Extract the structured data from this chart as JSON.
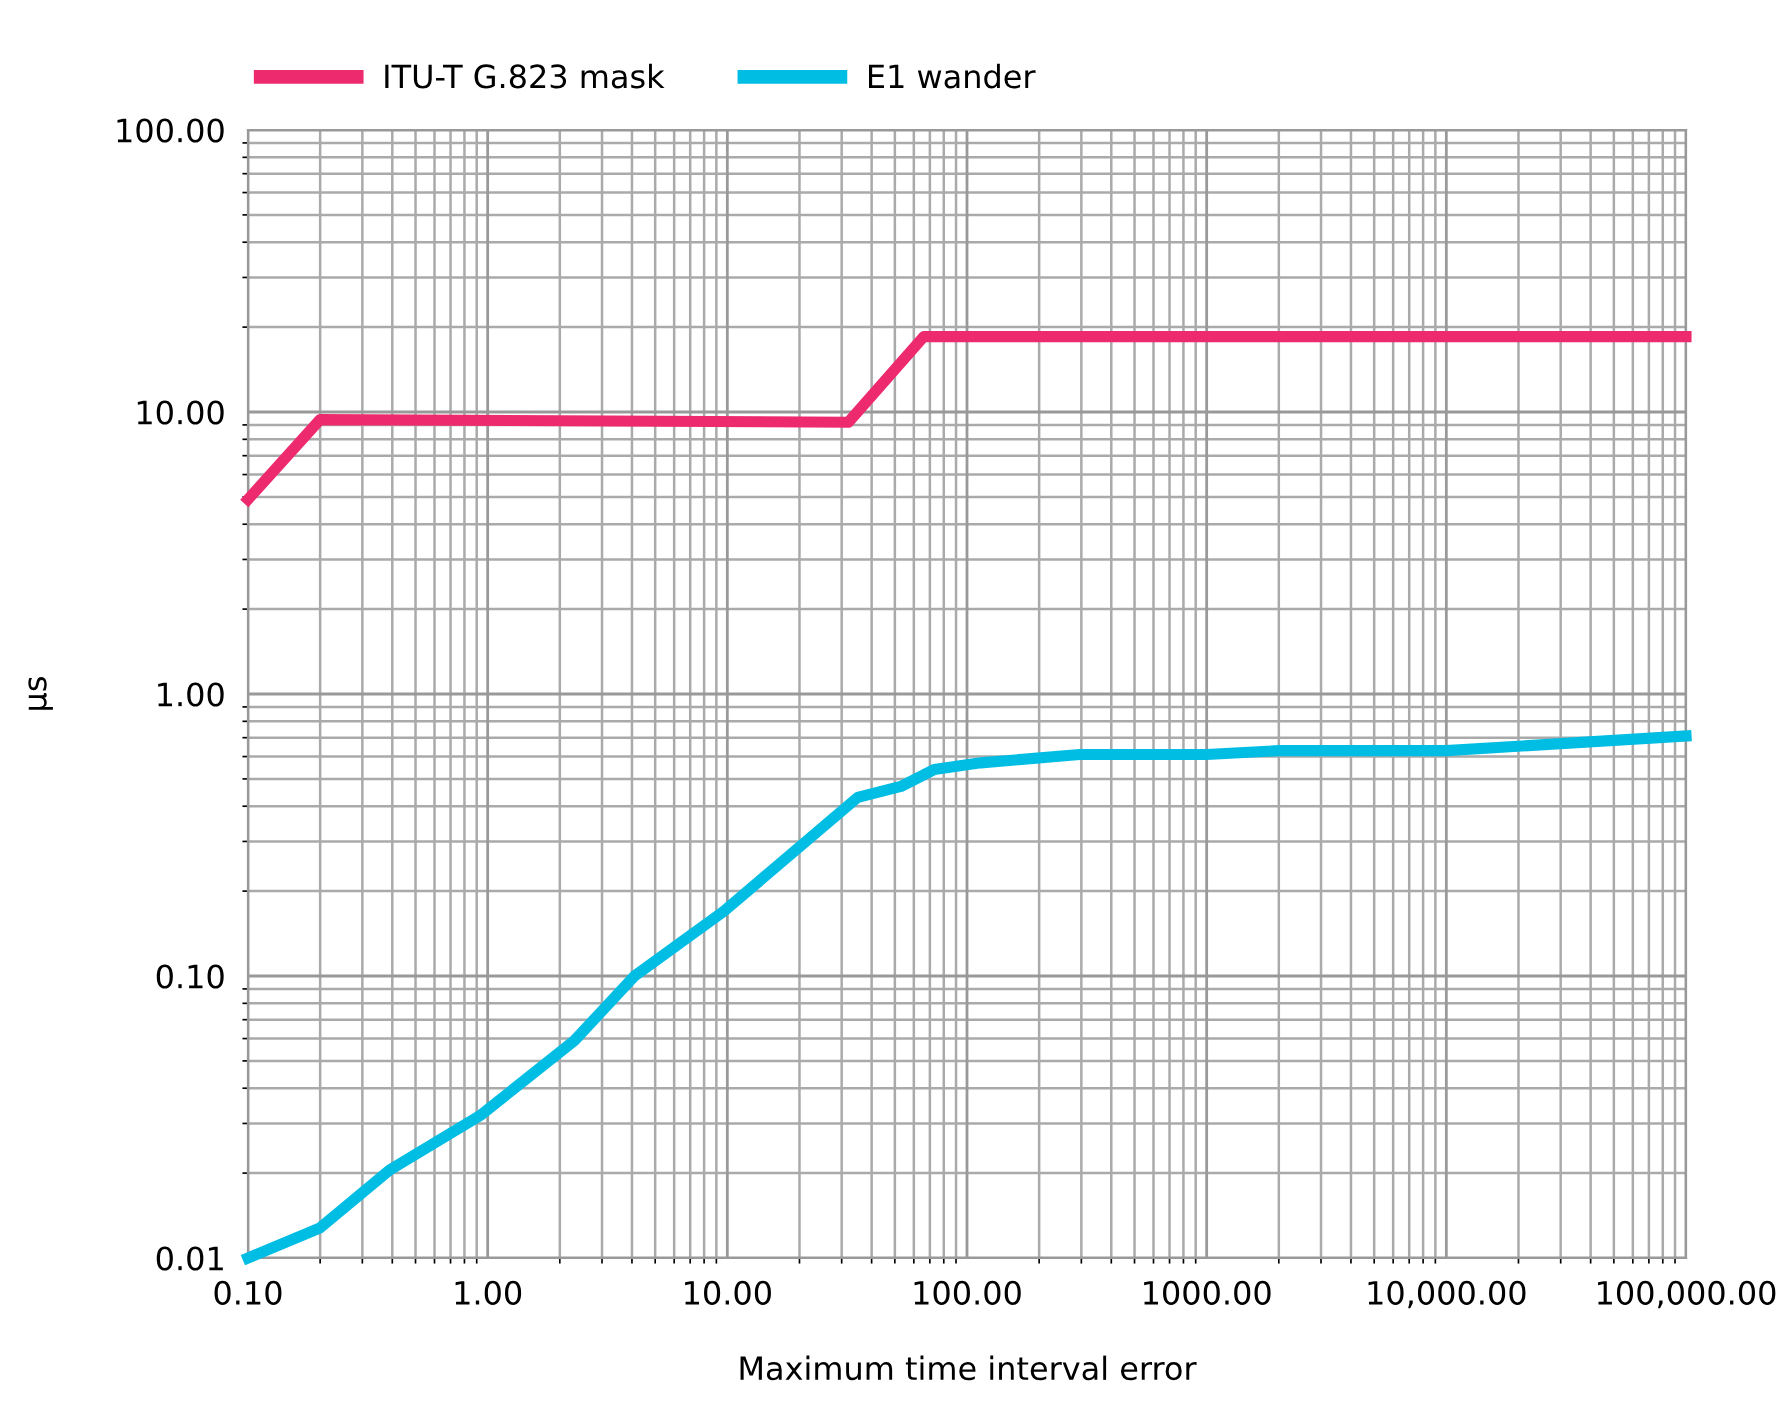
{
  "chart_data": {
    "type": "line",
    "xlabel": "Maximum time interval error",
    "ylabel": "µs",
    "log": "xy",
    "grid": true,
    "legend": "top left",
    "line_style": "solid",
    "marker": "none",
    "xlim": [
      0.1,
      100000
    ],
    "ylim": [
      0.01,
      100
    ],
    "xticks": [
      {
        "value": 0.1,
        "label": "0.10"
      },
      {
        "value": 1,
        "label": "1.00"
      },
      {
        "value": 10,
        "label": "10.00"
      },
      {
        "value": 100,
        "label": "100.00"
      },
      {
        "value": 1000,
        "label": "1000.00"
      },
      {
        "value": 10000,
        "label": "10,000.00"
      },
      {
        "value": 100000,
        "label": "100,000.00"
      }
    ],
    "yticks": [
      {
        "value": 0.01,
        "label": "0.01"
      },
      {
        "value": 0.1,
        "label": "0.10"
      },
      {
        "value": 1,
        "label": "1.00"
      },
      {
        "value": 10,
        "label": "10.00"
      },
      {
        "value": 100,
        "label": "100.00"
      }
    ],
    "series": [
      {
        "name": "ITU-T G.823 mask",
        "color": "#ee2a6f",
        "x": [
          0.1,
          0.2,
          32,
          66,
          100000
        ],
        "values": [
          4.9,
          9.4,
          9.2,
          18.5,
          18.5
        ]
      },
      {
        "name": "E1 wander",
        "color": "#00bde3",
        "x": [
          0.1,
          0.2,
          0.39,
          0.93,
          2.3,
          4.1,
          9.7,
          35,
          53,
          73,
          114,
          295,
          1000,
          2000,
          10000,
          100000
        ],
        "values": [
          0.01,
          0.0128,
          0.0205,
          0.032,
          0.059,
          0.1,
          0.17,
          0.43,
          0.47,
          0.54,
          0.57,
          0.61,
          0.61,
          0.63,
          0.63,
          0.71
        ]
      }
    ]
  }
}
